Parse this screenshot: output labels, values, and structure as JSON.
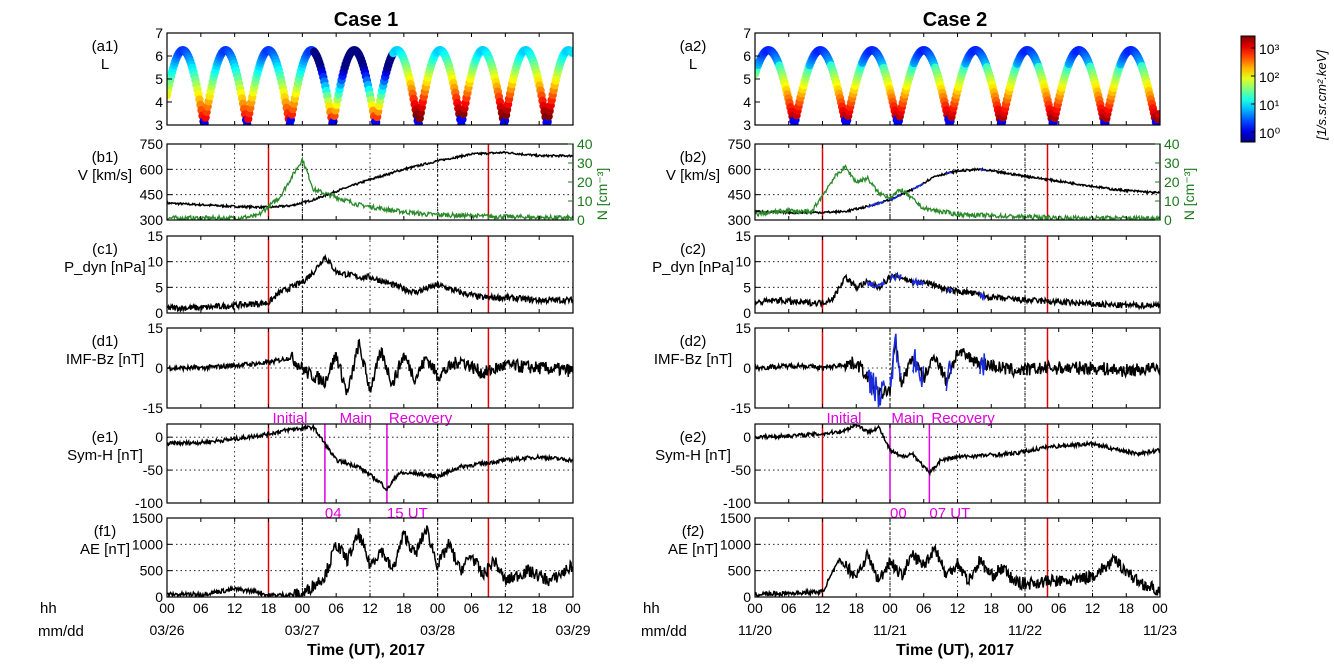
{
  "figure": {
    "case1_title": "Case 1",
    "case2_title": "Case 2",
    "xaxis_label": "Time (UT), 2017",
    "hh_label": "hh",
    "mmdd_label": "mm/dd"
  },
  "colorbar": {
    "label": "[1/s.sr.cm².keV]",
    "ticks": [
      "10⁰",
      "10¹",
      "10²",
      "10³"
    ],
    "scale": "log"
  },
  "chart_data": [
    {
      "type": "line",
      "title": "Case 1",
      "x_hour_labels": [
        "00",
        "06",
        "12",
        "18",
        "00",
        "06",
        "12",
        "18",
        "00",
        "06",
        "12",
        "18",
        "00"
      ],
      "x_date_labels": [
        "03/26",
        "03/27",
        "03/28",
        "03/29"
      ],
      "storm_phase_markers": {
        "red_lines_hours": [
          18,
          57
        ],
        "magenta_lines_hours": [
          28,
          39
        ],
        "phase_labels": [
          "Initial",
          "Main",
          "Recovery"
        ],
        "marker_labels": [
          "04",
          "15 UT"
        ]
      },
      "panels": [
        {
          "id": "a1",
          "label": "(a1)",
          "ylabel": "L",
          "ylim": [
            3,
            7
          ],
          "yticks": [
            "3",
            "4",
            "5",
            "6",
            "7"
          ],
          "plot": "orbit flux"
        },
        {
          "id": "b1",
          "label": "(b1)",
          "ylabel": "V [km/s]",
          "ylim": [
            300,
            750
          ],
          "yticks": [
            "300",
            "450",
            "600",
            "750"
          ],
          "right_ylabel": "N [cm⁻³]",
          "right_ylim": [
            0,
            40
          ],
          "right_yticks": [
            "0",
            "10",
            "20",
            "30",
            "40"
          ],
          "series": [
            {
              "axis": "left",
              "color": "#000000",
              "x": [
                0,
                12,
                18,
                22,
                26,
                30,
                36,
                42,
                48,
                54,
                60,
                66,
                72
              ],
              "y": [
                400,
                380,
                375,
                385,
                420,
                470,
                540,
                600,
                650,
                690,
                700,
                680,
                680
              ]
            },
            {
              "axis": "right",
              "color": "#2a8a2a",
              "x": [
                0,
                12,
                16,
                20,
                22,
                24,
                26,
                30,
                34,
                40,
                46,
                56,
                72
              ],
              "y": [
                1,
                1,
                2,
                12,
                22,
                32,
                16,
                12,
                8,
                5,
                3,
                2,
                1
              ]
            }
          ]
        },
        {
          "id": "c1",
          "label": "(c1)",
          "ylabel": "P_dyn [nPa]",
          "ylim": [
            0,
            15
          ],
          "yticks": [
            "0",
            "5",
            "10",
            "15"
          ],
          "series": [
            {
              "color": "#000000",
              "x": [
                0,
                6,
                12,
                18,
                20,
                22,
                24,
                26,
                28,
                30,
                32,
                34,
                36,
                40,
                44,
                48,
                52,
                56,
                60,
                66,
                72
              ],
              "y": [
                1,
                1,
                1.5,
                2,
                4,
                5,
                6,
                8,
                11,
                8,
                7.5,
                7,
                7,
                5.5,
                4,
                5.5,
                4,
                3,
                3,
                2.5,
                2.5
              ]
            }
          ]
        },
        {
          "id": "d1",
          "label": "(d1)",
          "ylabel": "IMF-Bz [nT]",
          "ylim": [
            -15,
            15
          ],
          "yticks": [
            "-15",
            "0",
            "15"
          ],
          "series": [
            {
              "color": "#000000",
              "x": [
                0,
                6,
                12,
                18,
                22,
                25,
                28,
                30,
                32,
                34,
                36,
                38,
                40,
                42,
                44,
                46,
                48,
                52,
                56,
                60,
                66,
                72
              ],
              "y": [
                0,
                0,
                1,
                2,
                4,
                -2,
                -5,
                5,
                -10,
                9,
                -8,
                6,
                -6,
                5,
                -4,
                4,
                -3,
                3,
                -2,
                1,
                0,
                -1
              ]
            }
          ]
        },
        {
          "id": "e1",
          "label": "(e1)",
          "ylabel": "Sym-H [nT]",
          "ylim": [
            -100,
            20
          ],
          "yticks": [
            "-100",
            "-50",
            "0"
          ],
          "series": [
            {
              "color": "#000000",
              "x": [
                0,
                6,
                12,
                18,
                22,
                26,
                28,
                30,
                34,
                38,
                39,
                41,
                44,
                48,
                52,
                56,
                60,
                66,
                72
              ],
              "y": [
                -10,
                -8,
                -3,
                5,
                12,
                15,
                -10,
                -35,
                -45,
                -70,
                -80,
                -55,
                -55,
                -60,
                -45,
                -40,
                -35,
                -30,
                -35
              ]
            }
          ]
        },
        {
          "id": "f1",
          "label": "(f1)",
          "ylabel": "AE [nT]",
          "ylim": [
            0,
            1500
          ],
          "yticks": [
            "0",
            "500",
            "1000",
            "1500"
          ],
          "series": [
            {
              "color": "#000000",
              "x": [
                0,
                6,
                12,
                16,
                18,
                24,
                28,
                30,
                32,
                34,
                36,
                38,
                40,
                42,
                44,
                46,
                48,
                50,
                52,
                54,
                56,
                58,
                60,
                64,
                68,
                72
              ],
              "y": [
                50,
                50,
                150,
                100,
                30,
                50,
                400,
                1000,
                700,
                1200,
                600,
                900,
                500,
                1200,
                800,
                1300,
                600,
                1000,
                500,
                800,
                400,
                700,
                300,
                500,
                300,
                600
              ]
            }
          ]
        }
      ]
    },
    {
      "type": "line",
      "title": "Case 2",
      "x_hour_labels": [
        "00",
        "06",
        "12",
        "18",
        "00",
        "06",
        "12",
        "18",
        "00",
        "06",
        "12",
        "18",
        "00"
      ],
      "x_date_labels": [
        "11/20",
        "11/21",
        "11/22",
        "11/23"
      ],
      "storm_phase_markers": {
        "red_lines_hours": [
          12,
          52
        ],
        "magenta_lines_hours": [
          24,
          31
        ],
        "phase_labels": [
          "Initial",
          "Main",
          "Recovery"
        ],
        "marker_labels": [
          "00",
          "07 UT"
        ]
      },
      "panels": [
        {
          "id": "a2",
          "label": "(a2)",
          "ylabel": "L",
          "ylim": [
            3,
            7
          ],
          "yticks": [
            "3",
            "4",
            "5",
            "6",
            "7"
          ],
          "plot": "orbit flux"
        },
        {
          "id": "b2",
          "label": "(b2)",
          "ylabel": "V [km/s]",
          "ylim": [
            300,
            750
          ],
          "yticks": [
            "300",
            "450",
            "600",
            "750"
          ],
          "right_ylabel": "N [cm⁻³]",
          "right_ylim": [
            0,
            40
          ],
          "right_yticks": [
            "0",
            "10",
            "20",
            "30",
            "40"
          ],
          "series": [
            {
              "axis": "left",
              "color": "#000000",
              "x": [
                0,
                6,
                12,
                16,
                20,
                24,
                28,
                32,
                36,
                40,
                44,
                50,
                56,
                64,
                72
              ],
              "y": [
                350,
                345,
                345,
                350,
                380,
                420,
                480,
                560,
                590,
                600,
                580,
                550,
                520,
                480,
                460
              ]
            },
            {
              "axis": "right",
              "color": "#2a8a2a",
              "x": [
                0,
                6,
                10,
                14,
                16,
                18,
                20,
                22,
                24,
                26,
                30,
                36,
                44,
                56,
                72
              ],
              "y": [
                3,
                5,
                4,
                22,
                28,
                20,
                22,
                14,
                12,
                16,
                6,
                3,
                2,
                1,
                1
              ]
            }
          ]
        },
        {
          "id": "c2",
          "label": "(c2)",
          "ylabel": "P_dyn [nPa]",
          "ylim": [
            0,
            15
          ],
          "yticks": [
            "0",
            "5",
            "10",
            "15"
          ],
          "series": [
            {
              "color": "#000000",
              "x": [
                0,
                4,
                8,
                12,
                14,
                16,
                18,
                20,
                22,
                24,
                26,
                28,
                30,
                32,
                34,
                38,
                42,
                48,
                56,
                64,
                72
              ],
              "y": [
                2,
                2.5,
                2,
                2,
                3,
                7,
                5,
                6,
                5,
                7,
                7,
                6,
                6,
                5.5,
                4.5,
                4,
                3,
                2.5,
                2,
                1.5,
                1.5
              ]
            }
          ]
        },
        {
          "id": "d2",
          "label": "(d2)",
          "ylabel": "IMF-Bz [nT]",
          "ylim": [
            -15,
            15
          ],
          "yticks": [
            "-15",
            "0",
            "15"
          ],
          "series": [
            {
              "color": "#000000",
              "x": [
                0,
                8,
                12,
                18,
                20,
                22,
                24,
                25,
                26,
                28,
                30,
                32,
                34,
                36,
                40,
                46,
                52,
                60,
                66,
                72
              ],
              "y": [
                0,
                1,
                0,
                2,
                -3,
                -10,
                -8,
                10,
                -6,
                4,
                -4,
                5,
                -5,
                6,
                2,
                -1,
                0,
                0,
                -1,
                0
              ]
            }
          ]
        },
        {
          "id": "e2",
          "label": "(e2)",
          "ylabel": "Sym-H [nT]",
          "ylim": [
            -100,
            20
          ],
          "yticks": [
            "-100",
            "-50",
            "0"
          ],
          "series": [
            {
              "color": "#000000",
              "x": [
                0,
                6,
                12,
                16,
                18,
                20,
                22,
                24,
                26,
                28,
                30,
                31,
                33,
                36,
                40,
                46,
                52,
                56,
                60,
                64,
                68,
                72
              ],
              "y": [
                0,
                2,
                5,
                10,
                20,
                8,
                15,
                -20,
                -30,
                -25,
                -45,
                -55,
                -35,
                -30,
                -28,
                -25,
                -15,
                -12,
                -10,
                -18,
                -25,
                -20
              ]
            }
          ]
        },
        {
          "id": "f2",
          "label": "(f2)",
          "ylabel": "AE [nT]",
          "ylim": [
            0,
            1500
          ],
          "yticks": [
            "0",
            "500",
            "1000",
            "1500"
          ],
          "series": [
            {
              "color": "#000000",
              "x": [
                0,
                8,
                12,
                15,
                18,
                20,
                22,
                24,
                26,
                28,
                30,
                32,
                34,
                36,
                38,
                40,
                42,
                44,
                46,
                48,
                52,
                56,
                60,
                64,
                68,
                72
              ],
              "y": [
                50,
                80,
                100,
                700,
                400,
                800,
                300,
                700,
                400,
                800,
                600,
                950,
                400,
                650,
                300,
                700,
                400,
                550,
                300,
                250,
                300,
                300,
                400,
                700,
                300,
                100
              ]
            }
          ]
        }
      ]
    }
  ]
}
